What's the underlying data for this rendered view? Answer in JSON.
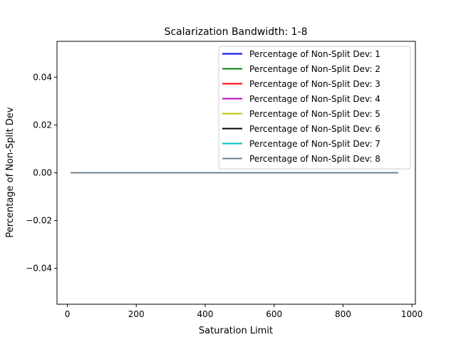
{
  "chart_data": {
    "type": "line",
    "title": "Scalarization Bandwidth: 1-8",
    "xlabel": "Saturation Limit",
    "ylabel": "Percentage of Non-Split Dev",
    "xlim": [
      -30,
      1010
    ],
    "ylim": [
      -0.055,
      0.055
    ],
    "x_ticks": [
      0,
      200,
      400,
      600,
      800,
      1000
    ],
    "y_ticks": [
      -0.04,
      -0.02,
      0.0,
      0.02,
      0.04
    ],
    "x_tick_labels": [
      "0",
      "200",
      "400",
      "600",
      "800",
      "1000"
    ],
    "y_tick_labels": [
      "−0.04",
      "−0.02",
      "0.00",
      "0.02",
      "0.04"
    ],
    "grid": false,
    "legend_position": "top-right",
    "x": [
      10,
      960
    ],
    "series": [
      {
        "name": "Percentage of Non-Split Dev: 1",
        "color": "#0000ff",
        "values": [
          0,
          0
        ]
      },
      {
        "name": "Percentage of Non-Split Dev: 2",
        "color": "#008000",
        "values": [
          0,
          0
        ]
      },
      {
        "name": "Percentage of Non-Split Dev: 3",
        "color": "#ff0000",
        "values": [
          0,
          0
        ]
      },
      {
        "name": "Percentage of Non-Split Dev: 4",
        "color": "#bf00bf",
        "values": [
          0,
          0
        ]
      },
      {
        "name": "Percentage of Non-Split Dev: 5",
        "color": "#bfbf00",
        "values": [
          0,
          0
        ]
      },
      {
        "name": "Percentage of Non-Split Dev: 6",
        "color": "#000000",
        "values": [
          0,
          0
        ]
      },
      {
        "name": "Percentage of Non-Split Dev: 7",
        "color": "#00bfbf",
        "values": [
          0,
          0
        ]
      },
      {
        "name": "Percentage of Non-Split Dev: 8",
        "color": "#708090",
        "values": [
          0,
          0
        ]
      }
    ]
  }
}
